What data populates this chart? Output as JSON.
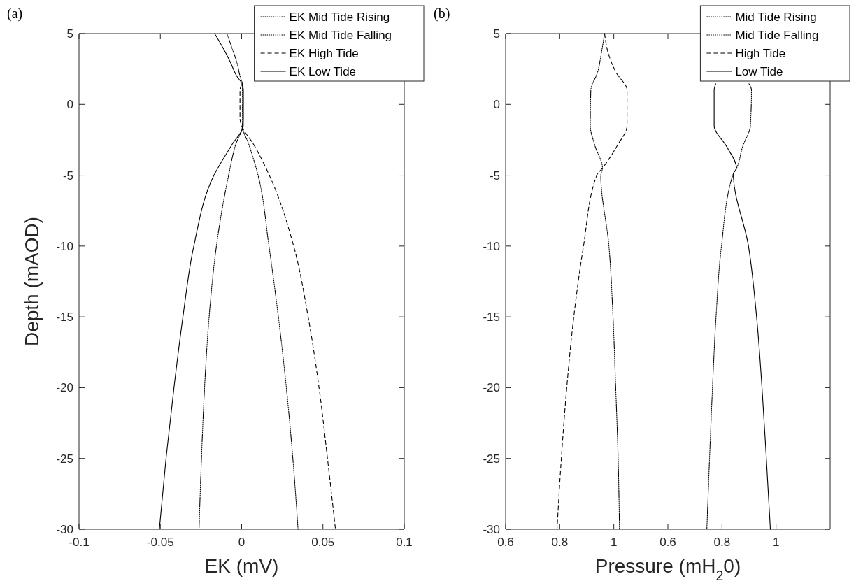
{
  "chart_data": [
    {
      "type": "line",
      "xlabel": "EK (mV)",
      "ylabel": "Depth (mAOD)",
      "annotations": [
        "(a)"
      ],
      "xlim": [
        -0.1,
        0.1
      ],
      "xticks": [
        -0.1,
        -0.05,
        0,
        0.05,
        0.1
      ],
      "ylim": [
        -30,
        5
      ],
      "yticks": [
        -30,
        -25,
        -20,
        -15,
        -10,
        -5,
        0,
        5
      ],
      "grid": false,
      "legend": "top right",
      "series": [
        {
          "name": "EK Mid Tide Rising",
          "color": "#000000",
          "line_style": "dotted",
          "x": [
            -0.009,
            -0.006,
            -0.003,
            -0.001,
            0.0005,
            0.0005,
            0.0005,
            0.0005,
            0.0005,
            -0.0037,
            -0.008,
            -0.0155,
            -0.02,
            -0.0228,
            -0.0247,
            -0.0262
          ],
          "values": [
            5,
            4,
            3,
            2,
            1.4,
            1,
            0,
            -1,
            -1.5,
            -2.85,
            -5,
            -10,
            -15,
            -20,
            -25,
            -30
          ]
        },
        {
          "name": "EK Mid Tide Falling",
          "color": "#000000",
          "line_style": "dotted",
          "x": [
            0.0005,
            0.001,
            0.001,
            0.001,
            0.0005,
            0.0045,
            0.0101,
            0.0168,
            0.0226,
            0.0275,
            0.0315,
            0.0347
          ],
          "values": [
            1.4,
            1,
            0,
            -1,
            -1.5,
            -2.85,
            -5,
            -10,
            -15,
            -20,
            -25,
            -30
          ]
        },
        {
          "name": "EK High Tide",
          "color": "#000000",
          "line_style": "dashed",
          "x": [
            0,
            -0.001,
            -0.001,
            -0.001,
            0,
            0.0075,
            0.017,
            0.032,
            0.0409,
            0.0476,
            0.0528,
            0.0577
          ],
          "values": [
            1.4,
            1,
            0,
            -1,
            -1.5,
            -2.85,
            -5,
            -10,
            -15,
            -20,
            -25,
            -30
          ]
        },
        {
          "name": "EK Low Tide",
          "color": "#000000",
          "line_style": "solid",
          "x": [
            -0.0166,
            -0.0115,
            -0.007,
            -0.003,
            0.0005,
            0.001,
            0.001,
            0.001,
            0.001,
            -0.006,
            -0.017,
            -0.0294,
            -0.0361,
            -0.0416,
            -0.0465,
            -0.0506
          ],
          "values": [
            5,
            4,
            3,
            2,
            1.4,
            1,
            0,
            -1,
            -1.5,
            -2.85,
            -5,
            -10,
            -15,
            -20,
            -25,
            -30
          ]
        }
      ]
    },
    {
      "type": "line",
      "xlabel": "Pressure (mH$_{2}$0)",
      "annotations": [
        "(b)"
      ],
      "xlim": [
        0.6,
        1.2
      ],
      "xticks": [
        0.6,
        0.8,
        1
      ],
      "ylim": [
        -30,
        5
      ],
      "yticks": [
        -30,
        -25,
        -20,
        -15,
        -10,
        -5,
        0,
        5
      ],
      "grid": false,
      "series": [
        {
          "name": "Mid Tide Rising",
          "color": "#000000",
          "line_style": "dotted",
          "x": [
            0.966,
            0.954,
            0.94,
            0.915,
            0.913,
            0.93,
            0.958,
            0.952,
            0.982,
            0.997,
            1.007,
            1.016,
            1.021
          ],
          "values": [
            5,
            3.64,
            2.27,
            1,
            -1.5,
            -2.9,
            -4.5,
            -5,
            -10,
            -15,
            -20,
            -25,
            -30
          ]
        },
        {
          "name": "High Tide",
          "color": "#000000",
          "line_style": "dashed",
          "x": [
            0.966,
            0.979,
            1.008,
            1.049,
            1.049,
            1.013,
            0.958,
            0.937,
            0.888,
            0.852,
            0.826,
            0.806,
            0.79
          ],
          "values": [
            5,
            3.64,
            2.27,
            1,
            -1.5,
            -2.9,
            -4.5,
            -5,
            -10,
            -15,
            -20,
            -25,
            -30
          ]
        }
      ]
    },
    {
      "type": "line",
      "xlim": [
        0.6,
        1.2
      ],
      "xticks": [
        0.6,
        0.8,
        1
      ],
      "ylim": [
        -30,
        5
      ],
      "yticks": [
        -30,
        -25,
        -20,
        -15,
        -10,
        -5,
        0,
        5
      ],
      "tick_labels": "x",
      "grid": false,
      "legend": "top right",
      "series": [
        {
          "name": "Mid Tide Falling",
          "color": "#000000",
          "line_style": "dotted",
          "x": [
            0.9,
            0.909,
            0.905,
            0.876,
            0.854,
            0.84,
            0.798,
            0.778,
            0.765,
            0.754,
            0.744
          ],
          "values": [
            1.45,
            1,
            -1.5,
            -3,
            -4.5,
            -5,
            -10,
            -15,
            -20,
            -25,
            -30
          ]
        },
        {
          "name": "Low Tide",
          "color": "#000000",
          "line_style": "solid",
          "x": [
            0.777,
            0.771,
            0.771,
            0.818,
            0.854,
            0.842,
            0.898,
            0.928,
            0.948,
            0.964,
            0.979
          ],
          "values": [
            1.45,
            1,
            -1.5,
            -3,
            -4.5,
            -4.9,
            -10,
            -15,
            -20,
            -25,
            -30
          ]
        }
      ]
    }
  ]
}
